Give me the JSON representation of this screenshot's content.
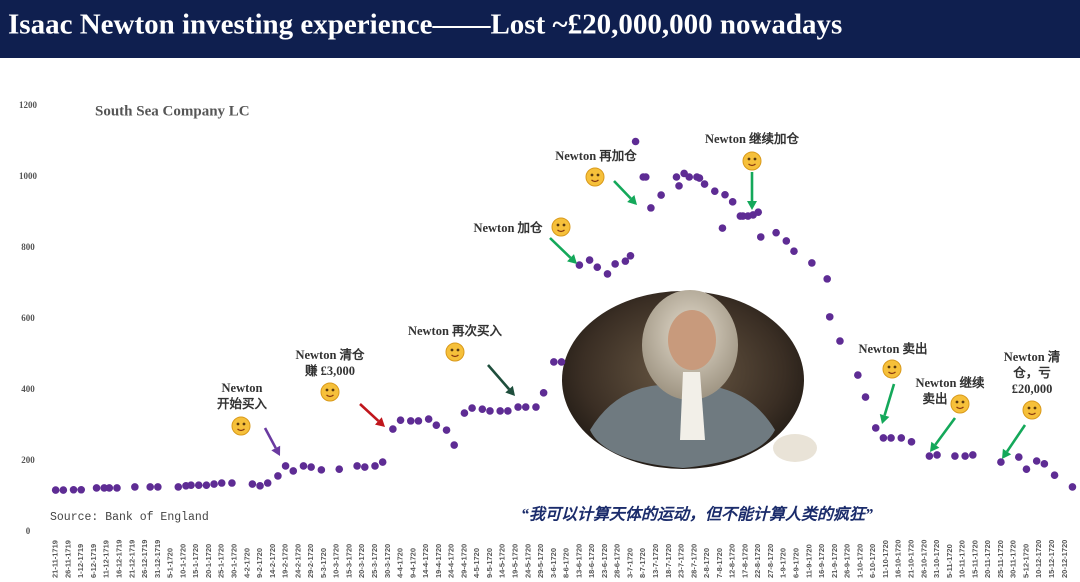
{
  "chart_data": {
    "type": "scatter",
    "title": "Isaac Newton investing experience——Lost ~£20,000,000 nowadays",
    "subtitle": "South Sea Company LC",
    "source": "Source: Bank of England",
    "quote": "“我可以计算天体的运动，但不能计算人类的疯狂”",
    "color": "#5e2c94",
    "x": [
      "21-11-1719",
      "24-11-1719",
      "28-11-1719",
      "1-12-1719",
      "7-12-1719",
      "10-12-1719",
      "12-12-1719",
      "15-12-1719",
      "22-12-1719",
      "28-12-1719",
      "31-12-1719",
      "8-1-1720",
      "11-1-1720",
      "13-1-1720",
      "16-1-1720",
      "19-1-1720",
      "22-1-1720",
      "25-1-1720",
      "29-1-1720",
      "6-2-1720",
      "9-2-1720",
      "12-2-1720",
      "16-2-1720",
      "19-2-1720",
      "22-2-1720",
      "26-2-1720",
      "29-2-1720",
      "4-3-1720",
      "11-3-1720",
      "18-3-1720",
      "21-3-1720",
      "25-3-1720",
      "28-3-1720",
      "1-4-1720",
      "4-4-1720",
      "8-4-1720",
      "11-4-1720",
      "15-4-1720",
      "18-4-1720",
      "22-4-1720",
      "25-4-1720",
      "29-4-1720",
      "2-5-1720",
      "6-5-1720",
      "9-5-1720",
      "13-5-1720",
      "16-5-1720",
      "20-5-1720",
      "23-5-1720",
      "27-5-1720",
      "30-5-1720",
      "3-6-1720",
      "6-6-1720",
      "13-6-1720",
      "17-6-1720",
      "20-6-1720",
      "24-6-1720",
      "27-6-1720",
      "1-7-1720",
      "3-7-1720",
      "5-7-1720",
      "8-7-1720",
      "9-7-1720",
      "11-7-1720",
      "15-7-1720",
      "21-7-1720",
      "22-7-1720",
      "24-7-1720",
      "26-7-1720",
      "29-7-1720",
      "30-7-1720",
      "1-8-1720",
      "5-8-1720",
      "8-8-1720",
      "9-8-1720",
      "12-8-1720",
      "15-8-1720",
      "16-8-1720",
      "18-8-1720",
      "20-8-1720",
      "22-8-1720",
      "23-8-1720",
      "29-8-1720",
      "2-9-1720",
      "5-9-1720",
      "12-9-1720",
      "18-9-1720",
      "19-9-1720",
      "23-9-1720",
      "30-9-1720",
      "3-10-1720",
      "7-10-1720",
      "10-10-1720",
      "13-10-1720",
      "17-10-1720",
      "21-10-1720",
      "28-10-1720",
      "31-10-1720",
      "7-11-1720",
      "11-11-1720",
      "14-11-1720",
      "25-11-1720",
      "2-12-1720",
      "5-12-1720",
      "9-12-1720",
      "12-12-1720",
      "16-12-1720",
      "23-12-1720"
    ],
    "values": [
      118,
      118,
      119,
      119,
      124,
      124,
      124,
      124,
      127,
      127,
      127,
      127,
      130,
      132,
      132,
      132,
      135,
      138,
      138,
      135,
      130,
      138,
      158,
      186,
      172,
      186,
      183,
      175,
      177,
      186,
      183,
      186,
      197,
      290,
      315,
      313,
      313,
      318,
      301,
      287,
      245,
      335,
      349,
      346,
      341,
      341,
      341,
      352,
      352,
      352,
      392,
      479,
      479,
      752,
      766,
      746,
      727,
      755,
      763,
      778,
      1100,
      1000,
      1000,
      913,
      949,
      1000,
      975,
      1010,
      1000,
      1000,
      997,
      980,
      960,
      856,
      950,
      930,
      890,
      890,
      890,
      893,
      901,
      831,
      843,
      820,
      791,
      758,
      713,
      606,
      538,
      442,
      380,
      293,
      265,
      265,
      265,
      254,
      214,
      217,
      214,
      214,
      217,
      197,
      211,
      177,
      200,
      192,
      160,
      127
    ],
    "xlim": [
      "18-11-1719",
      "24-12-1720"
    ],
    "xticks": [
      "21-11-1719",
      "26-11-1719",
      "1-12-1719",
      "6-12-1719",
      "11-12-1719",
      "16-12-1719",
      "21-12-1719",
      "26-12-1719",
      "31-12-1719",
      "5-1-1720",
      "10-1-1720",
      "15-1-1720",
      "20-1-1720",
      "25-1-1720",
      "30-1-1720",
      "4-2-1720",
      "9-2-1720",
      "14-2-1720",
      "19-2-1720",
      "24-2-1720",
      "29-2-1720",
      "5-3-1720",
      "10-3-1720",
      "15-3-1720",
      "20-3-1720",
      "25-3-1720",
      "30-3-1720",
      "4-4-1720",
      "9-4-1720",
      "14-4-1720",
      "19-4-1720",
      "24-4-1720",
      "29-4-1720",
      "4-5-1720",
      "9-5-1720",
      "14-5-1720",
      "19-5-1720",
      "24-5-1720",
      "29-5-1720",
      "3-6-1720",
      "8-6-1720",
      "13-6-1720",
      "18-6-1720",
      "23-6-1720",
      "28-6-1720",
      "3-7-1720",
      "8-7-1720",
      "13-7-1720",
      "18-7-1720",
      "23-7-1720",
      "28-7-1720",
      "2-8-1720",
      "7-8-1720",
      "12-8-1720",
      "17-8-1720",
      "22-8-1720",
      "27-8-1720",
      "1-9-1720",
      "6-9-1720",
      "11-9-1720",
      "16-9-1720",
      "21-9-1720",
      "26-9-1720",
      "1-10-1720",
      "6-10-1720",
      "11-10-1720",
      "16-10-1720",
      "21-10-1720",
      "26-10-1720",
      "31-10-1720",
      "5-11-1720",
      "10-11-1720",
      "15-11-1720",
      "20-11-1720",
      "25-11-1720",
      "30-11-1720",
      "5-12-1720",
      "10-12-1720",
      "15-12-1720",
      "20-12-1720"
    ],
    "ylim": [
      0,
      1200
    ],
    "yticks": [
      0,
      200,
      400,
      600,
      800,
      1000,
      1200
    ],
    "grid": false,
    "annotations": [
      {
        "lines": [
          "Newton",
          "开始买入"
        ]
      },
      {
        "lines": [
          "Newton 清仓",
          "赚 £3,000"
        ]
      },
      {
        "lines": [
          "Newton 再次买入"
        ]
      },
      {
        "lines": [
          "Newton 加仓"
        ]
      },
      {
        "lines": [
          "Newton 再加仓"
        ]
      },
      {
        "lines": [
          "Newton 继续加仓"
        ]
      },
      {
        "lines": [
          "Newton 卖出"
        ]
      },
      {
        "lines": [
          "Newton 继续",
          "卖出"
        ]
      },
      {
        "lines": [
          "Newton 清",
          "仓，亏",
          "£20,000"
        ]
      }
    ]
  }
}
